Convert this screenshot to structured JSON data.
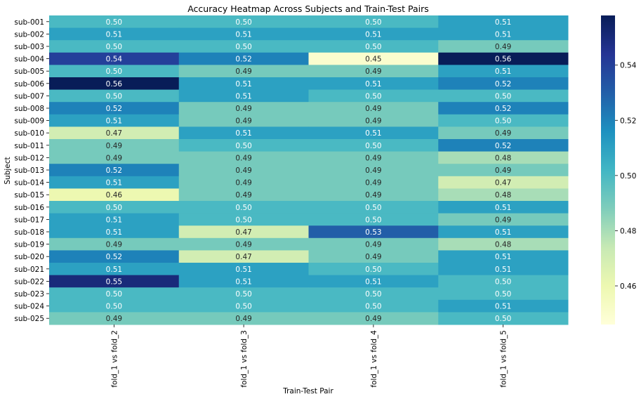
{
  "chart_data": {
    "type": "heatmap",
    "title": "Accuracy Heatmap Across Subjects and Train-Test Pairs",
    "xlabel": "Train-Test Pair",
    "ylabel": "Subject",
    "x_categories": [
      "fold_1 vs fold_2",
      "fold_1 vs fold_3",
      "fold_1 vs fold_4",
      "fold_1 vs fold_5"
    ],
    "y_categories": [
      "sub-001",
      "sub-002",
      "sub-003",
      "sub-004",
      "sub-005",
      "sub-006",
      "sub-007",
      "sub-008",
      "sub-009",
      "sub-010",
      "sub-011",
      "sub-012",
      "sub-013",
      "sub-014",
      "sub-015",
      "sub-016",
      "sub-017",
      "sub-018",
      "sub-019",
      "sub-020",
      "sub-021",
      "sub-022",
      "sub-023",
      "sub-024",
      "sub-025"
    ],
    "values": [
      [
        0.5,
        0.5,
        0.5,
        0.51
      ],
      [
        0.51,
        0.51,
        0.51,
        0.51
      ],
      [
        0.5,
        0.5,
        0.5,
        0.49
      ],
      [
        0.54,
        0.52,
        0.45,
        0.56
      ],
      [
        0.5,
        0.49,
        0.49,
        0.51
      ],
      [
        0.56,
        0.51,
        0.51,
        0.52
      ],
      [
        0.5,
        0.51,
        0.5,
        0.5
      ],
      [
        0.52,
        0.49,
        0.49,
        0.52
      ],
      [
        0.51,
        0.49,
        0.49,
        0.5
      ],
      [
        0.47,
        0.51,
        0.51,
        0.49
      ],
      [
        0.49,
        0.5,
        0.5,
        0.52
      ],
      [
        0.49,
        0.49,
        0.49,
        0.48
      ],
      [
        0.52,
        0.49,
        0.49,
        0.49
      ],
      [
        0.51,
        0.49,
        0.49,
        0.47
      ],
      [
        0.46,
        0.49,
        0.49,
        0.48
      ],
      [
        0.5,
        0.5,
        0.5,
        0.51
      ],
      [
        0.51,
        0.5,
        0.5,
        0.49
      ],
      [
        0.51,
        0.47,
        0.53,
        0.51
      ],
      [
        0.49,
        0.49,
        0.49,
        0.48
      ],
      [
        0.52,
        0.47,
        0.49,
        0.51
      ],
      [
        0.51,
        0.51,
        0.5,
        0.51
      ],
      [
        0.55,
        0.51,
        0.51,
        0.5
      ],
      [
        0.5,
        0.5,
        0.5,
        0.5
      ],
      [
        0.5,
        0.5,
        0.5,
        0.51
      ],
      [
        0.49,
        0.49,
        0.49,
        0.5
      ]
    ],
    "value_format": "2 decimals",
    "colormap": "YlGnBu",
    "colorbar": {
      "range": [
        0.446,
        0.558
      ],
      "ticks": [
        0.46,
        0.48,
        0.5,
        0.52,
        0.54
      ],
      "tick_labels": [
        "0.46",
        "0.48",
        "0.50",
        "0.52",
        "0.54"
      ]
    },
    "grid": false,
    "legend": "colorbar-right"
  },
  "colors": {
    "colormap_stops": [
      "#ffffd9",
      "#edf8b1",
      "#c7e9b4",
      "#7fcdbb",
      "#41b6c4",
      "#1d91c0",
      "#225ea8",
      "#253494",
      "#081d58"
    ],
    "light_text": "#ffffff",
    "dark_text": "#262626"
  }
}
